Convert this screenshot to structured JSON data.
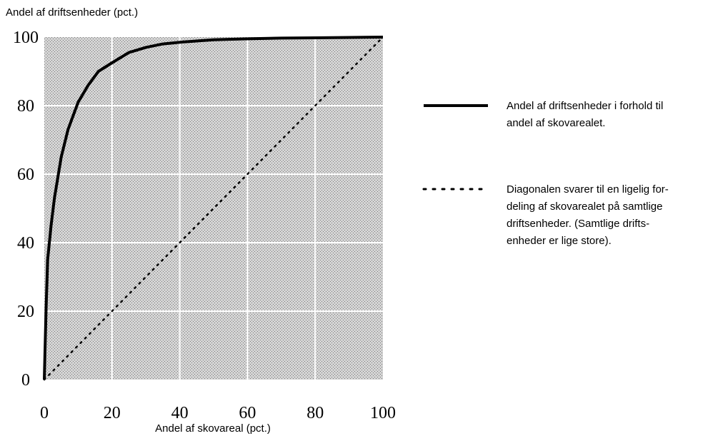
{
  "chart_data": {
    "type": "line",
    "title": "",
    "ylabel": "Andel af driftsenheder (pct.)",
    "xlabel": "Andel af skovareal (pct.)",
    "xlim": [
      0,
      100
    ],
    "ylim": [
      0,
      100
    ],
    "x_ticks": [
      "0",
      "20",
      "40",
      "60",
      "80",
      "100"
    ],
    "y_ticks": [
      "0",
      "20",
      "40",
      "60",
      "80",
      "100"
    ],
    "grid": true,
    "legend_position": "right",
    "series": [
      {
        "style": "solid",
        "x": [
          0,
          0.5,
          1,
          2,
          3,
          5,
          7,
          10,
          13,
          16,
          20,
          25,
          30,
          35,
          40,
          50,
          60,
          70,
          80,
          90,
          100
        ],
        "y": [
          0,
          20,
          35,
          45,
          53,
          65,
          73,
          81,
          86,
          90,
          92.5,
          95.5,
          97,
          98,
          98.5,
          99.2,
          99.5,
          99.7,
          99.8,
          99.9,
          100
        ]
      },
      {
        "style": "dotted",
        "x": [
          0,
          100
        ],
        "y": [
          0,
          100
        ]
      }
    ],
    "legend": [
      {
        "style": "solid",
        "lines": [
          "Andel af driftsenheder i forhold til",
          "andel af skovarealet."
        ]
      },
      {
        "style": "dotted",
        "lines": [
          "Diagonalen svarer til en ligelig for-",
          "deling af skovarealet på samtlige",
          "driftsenheder. (Samtlige drifts-",
          "enheder er lige store)."
        ]
      }
    ]
  }
}
